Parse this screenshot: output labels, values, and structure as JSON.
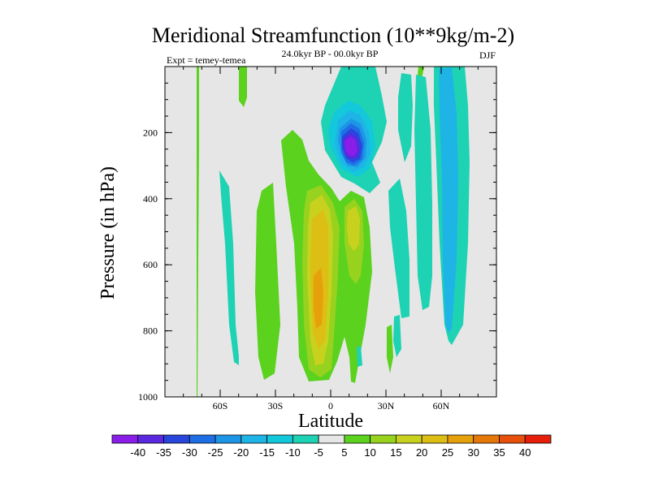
{
  "chart_data": {
    "type": "heatmap",
    "title": "Meridional Streamfunction (10**9kg/m-2)",
    "subtitle": "24.0kyr BP - 00.0kyr BP",
    "left_label": "Expt = temey-temea",
    "right_label": "DJF",
    "xlabel": "Latitude",
    "ylabel": "Pressure (in hPa)",
    "xlim": [
      -90,
      90
    ],
    "ylim": [
      1000,
      0
    ],
    "x_ticks": [
      {
        "value": -60,
        "label": "60S"
      },
      {
        "value": -30,
        "label": "30S"
      },
      {
        "value": 0,
        "label": "0"
      },
      {
        "value": 30,
        "label": "30N"
      },
      {
        "value": 60,
        "label": "60N"
      }
    ],
    "y_ticks": [
      {
        "value": 200,
        "label": "200"
      },
      {
        "value": 400,
        "label": "400"
      },
      {
        "value": 600,
        "label": "600"
      },
      {
        "value": 800,
        "label": "800"
      },
      {
        "value": 1000,
        "label": "1000"
      }
    ],
    "colorbar_levels": [
      -40,
      -35,
      -30,
      -25,
      -20,
      -15,
      -10,
      -5,
      5,
      10,
      15,
      20,
      25,
      30,
      35,
      40
    ],
    "colorbar_colors": [
      "#8a1ee8",
      "#5a28e0",
      "#2846dc",
      "#1e6ee6",
      "#1e96e6",
      "#1eb4e6",
      "#14c8dc",
      "#1ed2b4",
      "#e6e6e6",
      "#5ad21e",
      "#96d21e",
      "#c8d21e",
      "#dcbe14",
      "#e6a00a",
      "#e6780a",
      "#e6500a",
      "#e61e0a"
    ],
    "features": [
      {
        "name": "positive-cell-equator",
        "peak_lat": -5,
        "peak_p": 680,
        "peak_value": 25,
        "sign": "positive"
      },
      {
        "name": "positive-cell-north-of-equator",
        "peak_lat": 8,
        "peak_p": 500,
        "peak_value": 15,
        "sign": "positive"
      },
      {
        "name": "positive-band-southern-subtropics",
        "peak_lat": -28,
        "peak_p": 600,
        "peak_value": 5,
        "sign": "positive"
      },
      {
        "name": "negative-core-upper-tropics",
        "peak_lat": 10,
        "peak_p": 240,
        "peak_value": -40,
        "sign": "negative"
      },
      {
        "name": "negative-band-northern-midlatitudes",
        "peak_lat": 60,
        "peak_p": 450,
        "peak_value": -5,
        "sign": "negative"
      },
      {
        "name": "negative-band-southern-midlatitudes",
        "peak_lat": -55,
        "peak_p": 650,
        "peak_value": -5,
        "sign": "negative"
      }
    ]
  }
}
